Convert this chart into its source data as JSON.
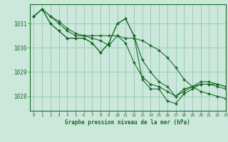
{
  "title": "Graphe pression niveau de la mer (hPa)",
  "bg_color": "#cce8dc",
  "grid_color": "#99ccbb",
  "line_color": "#1a6b2a",
  "marker_color": "#1a6b2a",
  "xlim": [
    -0.5,
    23
  ],
  "ylim": [
    1027.4,
    1031.8
  ],
  "yticks": [
    1028,
    1029,
    1030,
    1031
  ],
  "xticks": [
    0,
    1,
    2,
    3,
    4,
    5,
    6,
    7,
    8,
    9,
    10,
    11,
    12,
    13,
    14,
    15,
    16,
    17,
    18,
    19,
    20,
    21,
    22,
    23
  ],
  "series": [
    [
      1031.3,
      1031.6,
      1031.3,
      1031.1,
      1030.8,
      1030.6,
      1030.5,
      1030.5,
      1030.5,
      1030.5,
      1030.5,
      1030.4,
      1030.4,
      1030.3,
      1030.1,
      1029.9,
      1029.6,
      1029.2,
      1028.7,
      1028.4,
      1028.2,
      1028.1,
      1028.0,
      1027.9
    ],
    [
      1031.3,
      1031.6,
      1031.3,
      1031.0,
      1030.7,
      1030.5,
      1030.5,
      1030.4,
      1030.3,
      1030.1,
      1030.5,
      1030.2,
      1029.4,
      1028.8,
      1028.5,
      1028.4,
      1028.2,
      1028.0,
      1028.3,
      1028.4,
      1028.5,
      1028.5,
      1028.5,
      1028.4
    ],
    [
      1031.3,
      1031.6,
      1031.0,
      1030.7,
      1030.4,
      1030.4,
      1030.4,
      1030.2,
      1029.8,
      1030.2,
      1031.0,
      1031.2,
      1030.5,
      1029.5,
      1029.0,
      1028.6,
      1028.4,
      1028.0,
      1028.2,
      1028.4,
      1028.6,
      1028.6,
      1028.5,
      1028.4
    ],
    [
      1031.3,
      1031.6,
      1031.0,
      1030.7,
      1030.4,
      1030.4,
      1030.4,
      1030.2,
      1029.8,
      1030.2,
      1031.0,
      1031.2,
      1030.5,
      1028.7,
      1028.3,
      1028.3,
      1027.8,
      1027.7,
      1028.1,
      1028.3,
      1028.5,
      1028.5,
      1028.4,
      1028.3
    ]
  ],
  "xlabel_fontsize": 5.5,
  "ytick_fontsize": 5.5,
  "xtick_fontsize": 4.2
}
